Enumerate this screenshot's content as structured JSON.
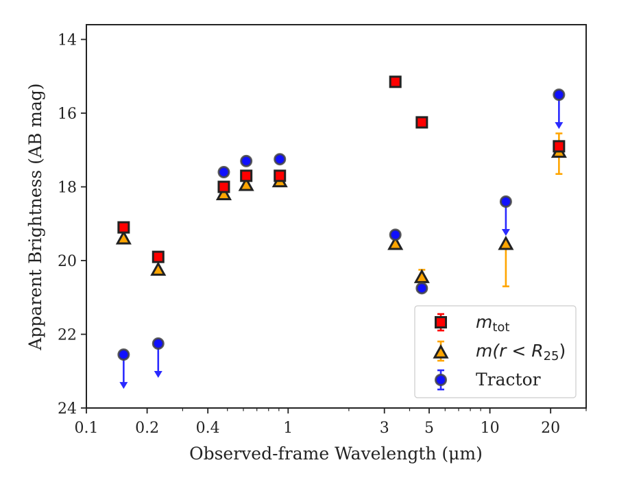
{
  "chart_data": {
    "type": "scatter",
    "xlabel": "Observed-frame Wavelength (μm)",
    "ylabel": "Apparent Brightness (AB mag)",
    "x_scale": "log",
    "xlim": [
      0.1,
      30
    ],
    "ylim": [
      24,
      13.6
    ],
    "y_inverted": true,
    "x_ticks": [
      0.1,
      0.2,
      0.4,
      1,
      3,
      5,
      10,
      20
    ],
    "x_tick_labels": [
      "0.1",
      "0.2",
      "0.4",
      "1",
      "3",
      "5",
      "10",
      "20"
    ],
    "y_ticks": [
      14,
      16,
      18,
      20,
      22,
      24
    ],
    "y_tick_labels": [
      "14",
      "16",
      "18",
      "20",
      "22",
      "24"
    ],
    "grid": false,
    "legend_position": "bottom-right",
    "colors": {
      "m_tot": "#ff0000",
      "m_r25": "#ffa500",
      "m_r25_errorbar": "#ffa500",
      "tractor": "#1010ff",
      "tractor_arrow": "#2a2aff",
      "marker_edge": "#222222"
    },
    "series": [
      {
        "key": "m_tot",
        "name": "m_tot",
        "legend_main": "m",
        "legend_sub": "tot",
        "marker": "square",
        "points": [
          {
            "x": 0.153,
            "y": 19.1
          },
          {
            "x": 0.227,
            "y": 19.9
          },
          {
            "x": 0.48,
            "y": 18.0
          },
          {
            "x": 0.62,
            "y": 17.7
          },
          {
            "x": 0.91,
            "y": 17.7
          },
          {
            "x": 3.4,
            "y": 15.15
          },
          {
            "x": 4.6,
            "y": 16.25
          },
          {
            "x": 22,
            "y": 16.9
          }
        ]
      },
      {
        "key": "m_r25",
        "name": "m(r < R25)",
        "legend_pre": "m(r < R",
        "legend_sub": "25",
        "legend_post": ")",
        "marker": "triangle",
        "points": [
          {
            "x": 0.153,
            "y": 19.4
          },
          {
            "x": 0.227,
            "y": 20.25
          },
          {
            "x": 0.48,
            "y": 18.2
          },
          {
            "x": 0.62,
            "y": 17.95
          },
          {
            "x": 0.91,
            "y": 17.85
          },
          {
            "x": 3.4,
            "y": 19.55
          },
          {
            "x": 4.6,
            "y": 20.45,
            "err_lo": 0.2,
            "err_hi": 0.2
          },
          {
            "x": 12,
            "y": 19.55,
            "err_lo": 0.0,
            "err_hi": 1.15
          },
          {
            "x": 22,
            "y": 17.05,
            "err_lo": 0.5,
            "err_hi": 0.6
          }
        ]
      },
      {
        "key": "tractor",
        "name": "Tractor",
        "legend_label": "Tractor",
        "marker": "circle",
        "points": [
          {
            "x": 0.153,
            "y": 22.55,
            "upper_limit": true
          },
          {
            "x": 0.227,
            "y": 22.25,
            "upper_limit": true
          },
          {
            "x": 0.48,
            "y": 17.6
          },
          {
            "x": 0.62,
            "y": 17.3
          },
          {
            "x": 0.91,
            "y": 17.25
          },
          {
            "x": 3.4,
            "y": 19.3
          },
          {
            "x": 4.6,
            "y": 20.75
          },
          {
            "x": 12,
            "y": 18.4,
            "upper_limit": true
          },
          {
            "x": 22,
            "y": 15.5,
            "upper_limit": true
          }
        ]
      }
    ]
  }
}
